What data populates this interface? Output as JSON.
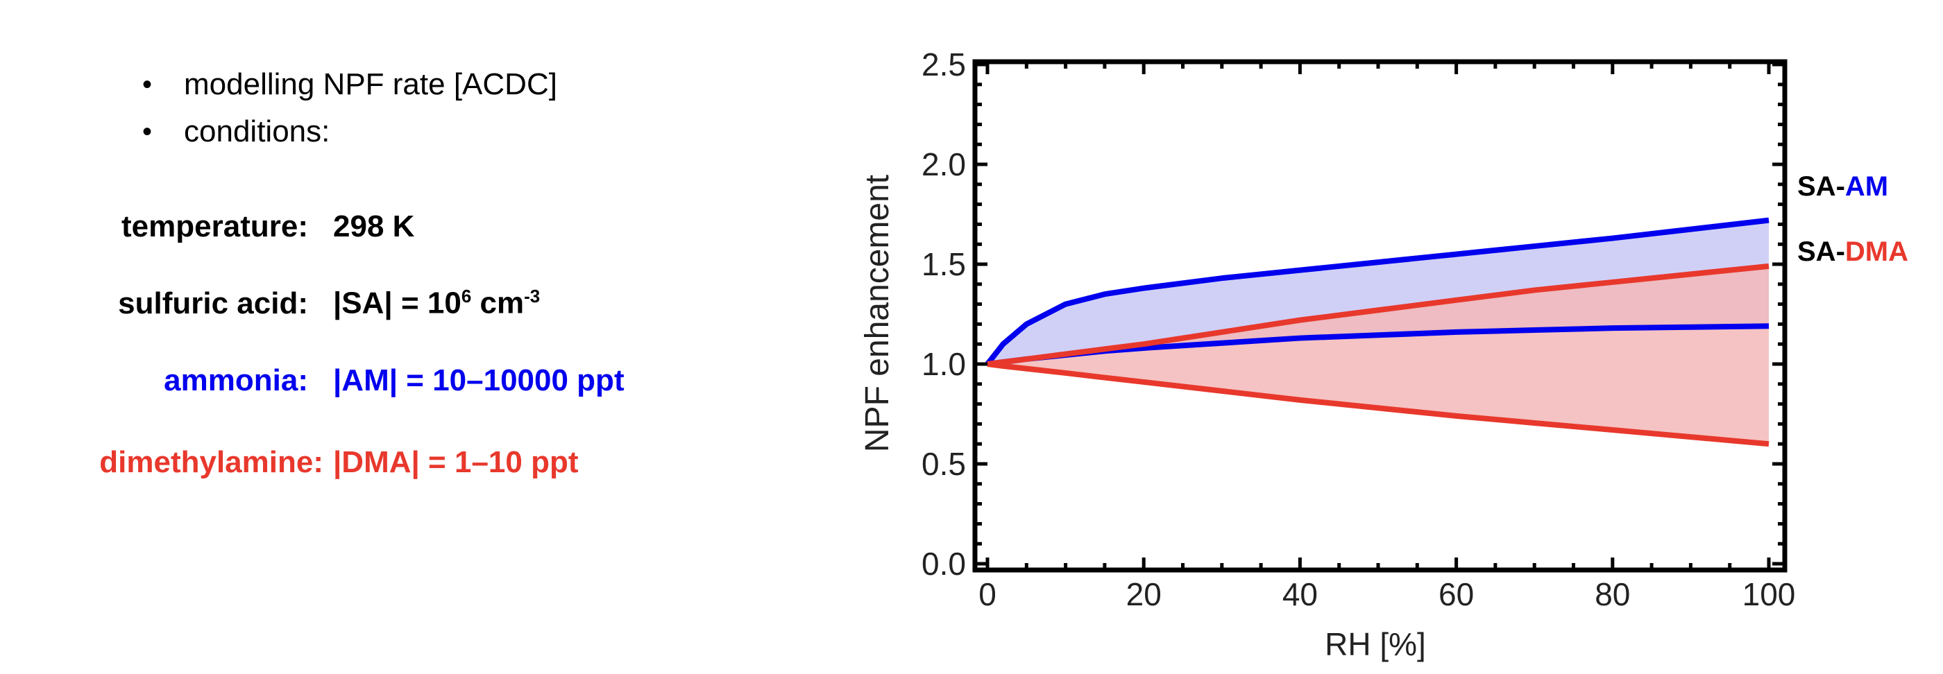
{
  "bullets": [
    "modelling NPF rate [ACDC]",
    "conditions:"
  ],
  "conditions": [
    {
      "label": "temperature:",
      "value": "298 K",
      "color": "#000000"
    },
    {
      "label": "sulfuric acid:",
      "value_main": "|SA| = 10",
      "value_sup": "6",
      "value_unit": " cm",
      "value_unit_sup": "-3",
      "color": "#000000"
    },
    {
      "label": "ammonia:",
      "value": "|AM| = 10–10000 ppt",
      "color": "#0000ee"
    },
    {
      "label": "dimethylamine:",
      "value": "|DMA| = 1–10 ppt",
      "color": "#e8382c"
    }
  ],
  "chart_data": {
    "type": "area",
    "xlabel": "RH [%]",
    "ylabel": "NPF enhancement",
    "xlim": [
      0,
      100
    ],
    "ylim": [
      0,
      2.5
    ],
    "xticks": [
      "0",
      "20",
      "40",
      "60",
      "80",
      "100"
    ],
    "yticks": [
      "0.0",
      "0.5",
      "1.0",
      "1.5",
      "2.0",
      "2.5"
    ],
    "legend": [
      {
        "prefix": "SA-",
        "name": "AM",
        "color": "#0000ee"
      },
      {
        "prefix": "SA-",
        "name": "DMA",
        "color": "#e8382c"
      }
    ],
    "legend_placement": "right",
    "x": [
      0,
      2,
      5,
      10,
      15,
      20,
      30,
      40,
      50,
      60,
      70,
      80,
      90,
      100
    ],
    "series": [
      {
        "name": "SA-AM upper",
        "color": "#0000ee",
        "values": [
          1.0,
          1.1,
          1.2,
          1.3,
          1.35,
          1.38,
          1.43,
          1.47,
          1.51,
          1.55,
          1.59,
          1.63,
          1.675,
          1.72
        ]
      },
      {
        "name": "SA-AM lower",
        "color": "#0000ee",
        "values": [
          1.0,
          1.01,
          1.025,
          1.045,
          1.065,
          1.08,
          1.105,
          1.13,
          1.145,
          1.16,
          1.17,
          1.18,
          1.185,
          1.19
        ]
      },
      {
        "name": "SA-DMA upper",
        "color": "#e8382c",
        "values": [
          1.0,
          1.01,
          1.025,
          1.05,
          1.075,
          1.1,
          1.16,
          1.22,
          1.27,
          1.32,
          1.37,
          1.41,
          1.45,
          1.49
        ]
      },
      {
        "name": "SA-DMA lower",
        "color": "#e8382c",
        "values": [
          1.0,
          0.99,
          0.977,
          0.955,
          0.932,
          0.91,
          0.865,
          0.82,
          0.78,
          0.74,
          0.705,
          0.67,
          0.635,
          0.6
        ]
      }
    ],
    "bands": [
      {
        "name": "SA-AM range",
        "fill": "#c8c8f6"
      },
      {
        "name": "SA-DMA range",
        "fill": "#f3b9b9"
      }
    ]
  }
}
